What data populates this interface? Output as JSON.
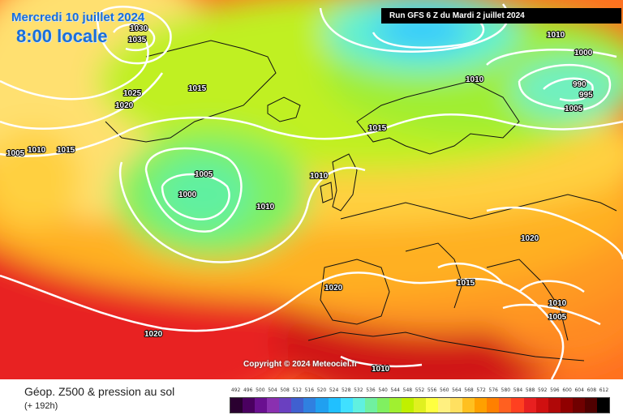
{
  "header": {
    "date": "Mercredi 10 juillet 2024",
    "time": "8:00 locale",
    "run": "Run GFS 6 Z du Mardi 2 juillet 2024"
  },
  "map": {
    "copyright": "Copyright © 2024 Meteociel.fr",
    "isobar_labels": [
      "1030",
      "1035",
      "1025",
      "1020",
      "1015",
      "1005",
      "1010",
      "1015",
      "1005",
      "1000",
      "1010",
      "1010",
      "1015",
      "1010",
      "1010",
      "1000",
      "990",
      "995",
      "1005",
      "1020",
      "1015",
      "1020",
      "1010",
      "1005",
      "1020",
      "1010"
    ]
  },
  "footer": {
    "title": "Géop. Z500 & pression au sol",
    "subtitle": "(+ 192h)"
  },
  "legend": {
    "values": [
      "492",
      "496",
      "500",
      "504",
      "508",
      "512",
      "516",
      "520",
      "524",
      "528",
      "532",
      "536",
      "540",
      "544",
      "548",
      "552",
      "556",
      "560",
      "564",
      "568",
      "572",
      "576",
      "580",
      "584",
      "588",
      "592",
      "596",
      "600",
      "604",
      "608",
      "612"
    ],
    "colors": [
      "#2a0030",
      "#4a0060",
      "#6a1090",
      "#8a30b0",
      "#6a40c0",
      "#4060d0",
      "#3080e0",
      "#20a0f0",
      "#20c0ff",
      "#40e0ff",
      "#60f0e0",
      "#70f0a0",
      "#80f060",
      "#a0f030",
      "#c0f000",
      "#e0f020",
      "#ffff40",
      "#fff080",
      "#ffe060",
      "#ffc020",
      "#ffa000",
      "#ff8000",
      "#ff6020",
      "#ff4020",
      "#e82020",
      "#d01010",
      "#b00808",
      "#900000",
      "#700000",
      "#500000",
      "#000000"
    ]
  }
}
